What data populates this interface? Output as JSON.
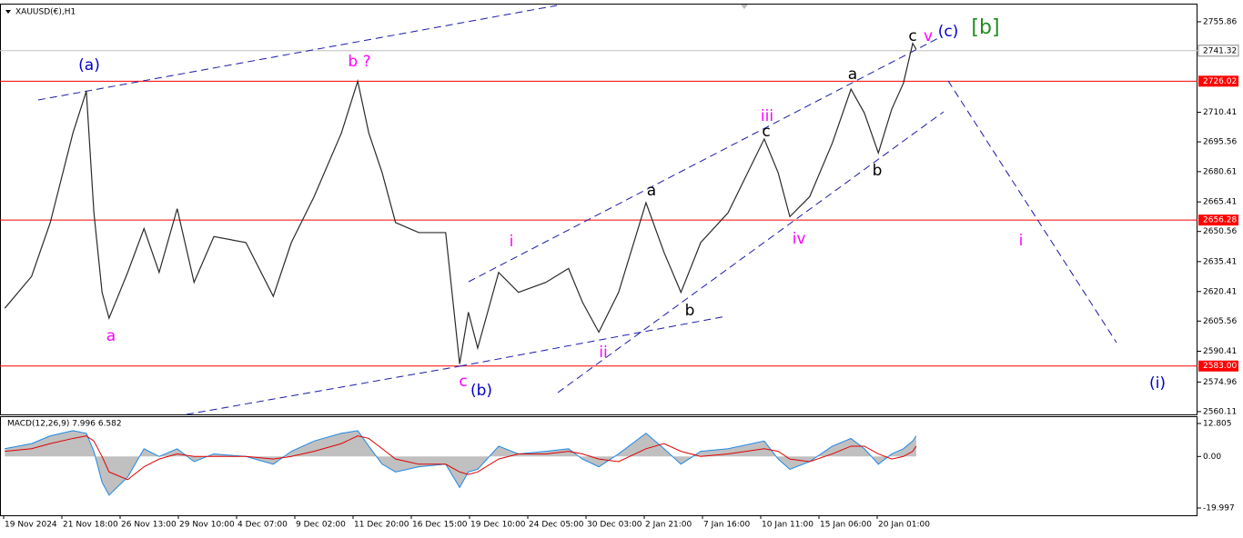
{
  "chart_data": [
    {
      "type": "line",
      "title": "XAUUSD(€),H1",
      "x": [
        0.02,
        0.48,
        0.8,
        1.19,
        1.42,
        1.55,
        1.69,
        1.81,
        2.13,
        2.41,
        2.67,
        2.98,
        3.27,
        3.61,
        4.16,
        4.63,
        4.94,
        5.33,
        5.8,
        6.08,
        6.27,
        6.5,
        6.73,
        7.13,
        7.59,
        7.83,
        7.98,
        8.14,
        8.5,
        8.84,
        9.31,
        9.7,
        9.94,
        10.22,
        10.56,
        11.03,
        11.34,
        11.63,
        11.97,
        12.44,
        13.06,
        13.3,
        13.5,
        13.84,
        14.23,
        14.55,
        14.78,
        15.02,
        15.25,
        15.45,
        15.61,
        15.67
      ],
      "series": [
        {
          "color": "#2a2a2a",
          "values": [
            2612,
            2628,
            2655,
            2700,
            2721,
            2660,
            2620,
            2607,
            2630,
            2652,
            2630,
            2662,
            2625,
            2648,
            2645,
            2618,
            2645,
            2668,
            2700,
            2726,
            2700,
            2680,
            2655,
            2650,
            2650,
            2584,
            2610,
            2592,
            2630,
            2620,
            2625,
            2632,
            2615,
            2600,
            2620,
            2665,
            2640,
            2620,
            2645,
            2660,
            2697,
            2680,
            2658,
            2668,
            2695,
            2722,
            2710,
            2690,
            2712,
            2725,
            2745,
            2742
          ]
        }
      ],
      "xlim": [
        -0.0625,
        20.5
      ],
      "xticks": [
        {
          "value": 0,
          "label": "19 Nov 2024"
        },
        {
          "value": 1,
          "label": "21 Nov 18:00"
        },
        {
          "value": 2,
          "label": "26 Nov 13:00"
        },
        {
          "value": 3,
          "label": "29 Nov 10:00"
        },
        {
          "value": 4,
          "label": "4 Dec 07:00"
        },
        {
          "value": 5,
          "label": "9 Dec 02:00"
        },
        {
          "value": 6,
          "label": "11 Dec 20:00"
        },
        {
          "value": 7,
          "label": "16 Dec 15:00"
        },
        {
          "value": 8,
          "label": "19 Dec 10:00"
        },
        {
          "value": 9,
          "label": "24 Dec 05:00"
        },
        {
          "value": 10,
          "label": "30 Dec 03:00"
        },
        {
          "value": 11,
          "label": "2 Jan 21:00"
        },
        {
          "value": 12,
          "label": "7 Jan 16:00"
        },
        {
          "value": 13,
          "label": "10 Jan 11:00"
        },
        {
          "value": 14,
          "label": "15 Jan 06:00"
        },
        {
          "value": 15,
          "label": "20 Jan 01:00"
        }
      ],
      "ylim": [
        2558.7,
        2764.5
      ],
      "yticks": [
        2755.86,
        2710.41,
        2695.56,
        2680.61,
        2665.41,
        2650.56,
        2635.41,
        2620.41,
        2605.56,
        2590.41,
        2574.96,
        2560.11
      ],
      "levels": [
        2726.02,
        2656.28,
        {
          "value": 2583,
          "label": "2583.00"
        }
      ],
      "level_color": "#ff0000",
      "last_price": 2741.32,
      "annotations": [
        {
          "text": "(a)",
          "color": "#0000cc"
        },
        {
          "text": "b ?",
          "color": "#ff00ff"
        },
        {
          "text": "a",
          "color": "#ff00ff"
        },
        {
          "text": "i",
          "color": "#ff00ff"
        },
        {
          "text": "ii",
          "color": "#ff00ff"
        },
        {
          "text": "c",
          "color": "#ff00ff"
        },
        {
          "text": "(b)",
          "color": "#0000cc"
        },
        {
          "text": "iii",
          "color": "#ff00ff"
        },
        {
          "text": "iv",
          "color": "#ff00ff"
        },
        {
          "text": "a",
          "color": "#000000"
        },
        {
          "text": "b",
          "color": "#000000"
        },
        {
          "text": "c",
          "color": "#000000"
        },
        {
          "text": "a",
          "color": "#000000"
        },
        {
          "text": "b",
          "color": "#000000"
        },
        {
          "text": "c",
          "color": "#000000"
        },
        {
          "text": "v",
          "color": "#ff00ff"
        },
        {
          "text": "(c)",
          "color": "#0000cc"
        },
        {
          "text": "[b]",
          "color": "#1f8c1f"
        },
        {
          "text": "i",
          "color": "#ff00ff"
        },
        {
          "text": "(i)",
          "color": "#0000cc"
        }
      ]
    },
    {
      "type": "macd",
      "title": "MACD(12,26,9) 7.996 6.582",
      "x": [
        0.02,
        0.48,
        0.8,
        1.19,
        1.42,
        1.55,
        1.69,
        1.81,
        2.13,
        2.41,
        2.67,
        2.98,
        3.27,
        3.61,
        4.16,
        4.63,
        4.94,
        5.33,
        5.8,
        6.08,
        6.27,
        6.5,
        6.73,
        7.13,
        7.59,
        7.83,
        7.98,
        8.14,
        8.5,
        8.84,
        9.31,
        9.7,
        9.94,
        10.22,
        10.56,
        11.03,
        11.34,
        11.63,
        11.97,
        12.44,
        13.06,
        13.3,
        13.5,
        13.84,
        14.23,
        14.55,
        14.78,
        15.02,
        15.25,
        15.45,
        15.61,
        15.67
      ],
      "series": [
        {
          "color": "#c0c0c0",
          "line_color": "#1e88e5",
          "values": [
            3,
            5,
            8,
            10,
            9,
            2,
            -10,
            -15,
            -8,
            3,
            0,
            3,
            -2,
            1,
            0,
            -3,
            2,
            6,
            9,
            10,
            4,
            -3,
            -6,
            -4,
            -3,
            -12,
            -6,
            -5,
            4,
            1,
            2,
            3,
            -1,
            -4,
            1,
            9,
            3,
            -3,
            2,
            3,
            6,
            -1,
            -5,
            -2,
            4,
            7,
            3,
            -3,
            1,
            3,
            6,
            8
          ]
        },
        {
          "color": "#e00000",
          "values": [
            2,
            3,
            5,
            7,
            8,
            6,
            0,
            -6,
            -9,
            -4,
            -1,
            1,
            0,
            0,
            0,
            -1,
            0,
            2,
            5,
            8,
            7,
            3,
            -1,
            -3,
            -3,
            -6,
            -7,
            -6,
            -1,
            1,
            1,
            2,
            1,
            -1,
            -2,
            3,
            5,
            2,
            0,
            1,
            3,
            2,
            -1,
            -2,
            1,
            4,
            4,
            1,
            -1,
            0,
            2,
            4
          ]
        }
      ],
      "xlim": [
        -0.0625,
        20.5
      ],
      "ylim": [
        -22.82,
        15.27
      ],
      "yticks": [
        12.805,
        {
          "value": 0,
          "label": "0.00"
        },
        -19.997
      ]
    }
  ]
}
